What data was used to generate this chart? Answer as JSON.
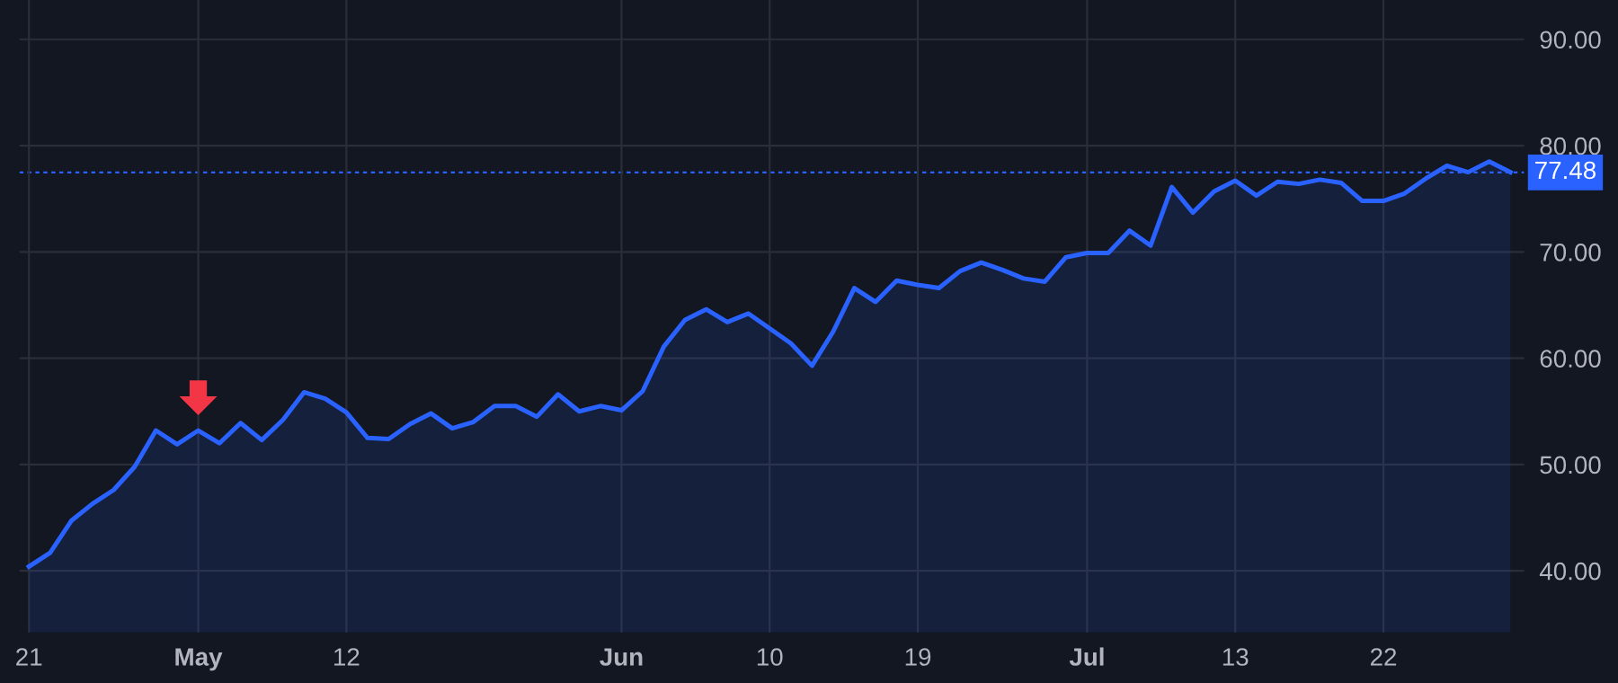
{
  "chart_data": {
    "type": "area",
    "categories": [
      "21",
      null,
      null,
      null,
      null,
      null,
      null,
      null,
      "May",
      null,
      null,
      null,
      null,
      null,
      null,
      "12",
      null,
      null,
      null,
      null,
      null,
      null,
      null,
      null,
      null,
      null,
      null,
      null,
      "Jun",
      null,
      null,
      null,
      null,
      null,
      null,
      "10",
      null,
      null,
      null,
      null,
      null,
      null,
      "19",
      null,
      null,
      null,
      null,
      null,
      null,
      null,
      "Jul",
      null,
      null,
      null,
      null,
      null,
      null,
      "13",
      null,
      null,
      null,
      null,
      null,
      null,
      "22",
      null,
      null,
      null,
      null,
      null,
      null
    ],
    "series": [
      {
        "color": "#2962ff",
        "values": [
          40.4,
          41.7,
          44.7,
          46.3,
          47.6,
          49.8,
          53.2,
          51.9,
          53.2,
          52.0,
          53.9,
          52.3,
          54.2,
          56.8,
          56.2,
          54.9,
          52.5,
          52.4,
          53.8,
          54.8,
          53.4,
          54.0,
          55.5,
          55.5,
          54.5,
          56.6,
          55.0,
          55.5,
          55.1,
          56.9,
          61.1,
          63.6,
          64.6,
          63.4,
          64.2,
          62.8,
          61.4,
          59.3,
          62.5,
          66.6,
          65.3,
          67.3,
          66.9,
          66.6,
          68.2,
          69.0,
          68.3,
          67.5,
          67.2,
          69.5,
          69.9,
          69.9,
          72.0,
          70.6,
          76.1,
          73.7,
          75.7,
          76.7,
          75.3,
          76.6,
          76.4,
          76.8,
          76.5,
          74.8,
          74.8,
          75.5,
          76.9,
          78.1,
          77.5,
          78.5,
          77.5
        ]
      }
    ],
    "ylim": [
      34.2,
      93.7
    ],
    "yticks": [
      {
        "value": 40,
        "label": "40.00"
      },
      {
        "value": 50,
        "label": "50.00"
      },
      {
        "value": 60,
        "label": "60.00"
      },
      {
        "value": 70,
        "label": "70.00"
      },
      {
        "value": 80,
        "label": "80.00"
      },
      {
        "value": 90,
        "label": "90.00"
      }
    ],
    "ref_lines": [
      {
        "axis": "y",
        "value": 77.48,
        "label": "77.48",
        "color": "#2962ff",
        "line_style": "dotted"
      }
    ],
    "grid": true
  }
}
